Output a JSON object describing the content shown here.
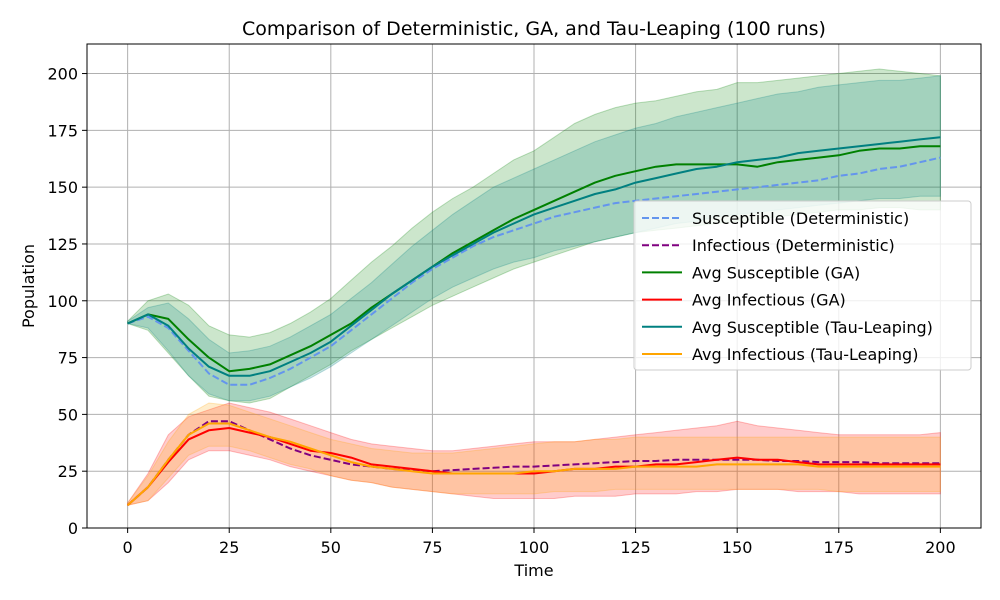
{
  "chart_data": {
    "type": "line",
    "title": "Comparison of Deterministic, GA, and Tau-Leaping (100 runs)",
    "xlabel": "Time",
    "ylabel": "Population",
    "xlim": [
      -10,
      210
    ],
    "ylim": [
      0,
      213
    ],
    "xticks": [
      0,
      25,
      50,
      75,
      100,
      125,
      150,
      175,
      200
    ],
    "yticks": [
      0,
      25,
      50,
      75,
      100,
      125,
      150,
      175,
      200
    ],
    "grid": true,
    "legend_position": "center-right",
    "x": [
      0,
      5,
      10,
      15,
      20,
      25,
      30,
      35,
      40,
      45,
      50,
      55,
      60,
      65,
      70,
      75,
      80,
      85,
      90,
      95,
      100,
      105,
      110,
      115,
      120,
      125,
      130,
      135,
      140,
      145,
      150,
      155,
      160,
      165,
      170,
      175,
      180,
      185,
      190,
      195,
      200
    ],
    "series": [
      {
        "name": "Susceptible (Deterministic)",
        "color": "#6495ED",
        "dash": "dashed",
        "values": [
          90,
          93,
          88,
          78,
          68,
          63,
          63,
          66,
          70,
          75,
          80,
          87,
          94,
          101,
          108,
          114,
          119,
          124,
          128,
          131,
          134,
          137,
          139,
          141,
          143,
          144,
          145,
          146,
          147,
          148,
          149,
          150,
          151,
          152,
          153,
          155,
          156,
          158,
          159,
          161,
          163
        ]
      },
      {
        "name": "Infectious (Deterministic)",
        "color": "#800080",
        "dash": "dashed",
        "values": [
          10,
          18,
          30,
          41,
          47,
          47,
          43,
          39,
          35,
          32,
          30,
          28,
          27,
          26,
          25.5,
          25,
          25.5,
          26,
          26.5,
          27,
          27,
          27.5,
          28,
          28.5,
          29,
          29.5,
          29.5,
          30,
          30,
          30,
          30,
          30,
          29.5,
          29.5,
          29,
          29,
          29,
          28.5,
          28.5,
          28.5,
          28.5
        ]
      },
      {
        "name": "Avg Susceptible (GA)",
        "color": "#008000",
        "dash": "solid",
        "values": [
          90,
          94,
          92,
          83,
          75,
          69,
          70,
          72,
          76,
          80,
          85,
          90,
          97,
          103,
          109,
          115,
          121,
          126,
          131,
          136,
          140,
          144,
          148,
          152,
          155,
          157,
          159,
          160,
          160,
          160,
          160,
          159,
          161,
          162,
          163,
          164,
          166,
          167,
          167,
          168,
          168
        ]
      },
      {
        "name": "Avg Infectious (GA)",
        "color": "#FF0000",
        "dash": "solid",
        "values": [
          10,
          18,
          29,
          39,
          43,
          44,
          42,
          40,
          37,
          34,
          33,
          31,
          28,
          27,
          26,
          25,
          24,
          24,
          24,
          24,
          24,
          25,
          26,
          26,
          27,
          27,
          28,
          28,
          29,
          30,
          31,
          30,
          30,
          29,
          28,
          28,
          28,
          28,
          28,
          28,
          28
        ]
      },
      {
        "name": "Avg Susceptible (Tau-Leaping)",
        "color": "#008080",
        "dash": "solid",
        "values": [
          90,
          94,
          89,
          79,
          71,
          67,
          67,
          69,
          73,
          77,
          82,
          89,
          96,
          103,
          109,
          115,
          120,
          125,
          130,
          134,
          138,
          141,
          144,
          147,
          149,
          152,
          154,
          156,
          158,
          159,
          161,
          162,
          163,
          165,
          166,
          167,
          168,
          169,
          170,
          171,
          172
        ]
      },
      {
        "name": "Avg Infectious (Tau-Leaping)",
        "color": "#FFA500",
        "dash": "solid",
        "values": [
          10,
          18,
          30,
          41,
          46,
          46,
          43,
          40,
          38,
          35,
          32,
          29,
          27,
          26,
          25,
          24,
          24,
          24,
          24,
          24,
          25,
          25,
          26,
          26,
          26,
          27,
          27,
          27,
          27,
          28,
          28,
          28,
          28,
          28,
          27,
          27,
          27,
          27,
          27,
          27,
          27
        ]
      }
    ],
    "bands": [
      {
        "color": "#008000",
        "opacity": 0.2,
        "upper": [
          91,
          100,
          103,
          98,
          89,
          85,
          84,
          86,
          90,
          95,
          101,
          109,
          117,
          124,
          132,
          139,
          145,
          150,
          156,
          162,
          166,
          172,
          178,
          182,
          185,
          187,
          188,
          190,
          192,
          193,
          196,
          196,
          197,
          198,
          199,
          200,
          201,
          202,
          201,
          200,
          199
        ],
        "lower": [
          90,
          87,
          77,
          67,
          58,
          56,
          55,
          57,
          62,
          67,
          72,
          78,
          83,
          88,
          93,
          98,
          102,
          106,
          110,
          114,
          117,
          120,
          123,
          126,
          128,
          130,
          131,
          132,
          133,
          134,
          135,
          136,
          137,
          138,
          139,
          140,
          140,
          141,
          141,
          140,
          140
        ]
      },
      {
        "color": "#008080",
        "opacity": 0.2,
        "upper": [
          91,
          97,
          99,
          92,
          83,
          77,
          78,
          80,
          84,
          89,
          94,
          101,
          108,
          116,
          124,
          131,
          138,
          144,
          150,
          154,
          158,
          162,
          166,
          170,
          173,
          176,
          178,
          181,
          183,
          185,
          187,
          189,
          191,
          192,
          194,
          195,
          196,
          197,
          197,
          198,
          199
        ],
        "lower": [
          90,
          88,
          78,
          67,
          59,
          56,
          56,
          58,
          62,
          66,
          71,
          77,
          83,
          89,
          95,
          101,
          106,
          110,
          114,
          117,
          119,
          122,
          124,
          126,
          128,
          130,
          132,
          134,
          135,
          137,
          138,
          139,
          140,
          141,
          142,
          143,
          144,
          145,
          145,
          146,
          146
        ]
      },
      {
        "color": "#FF0000",
        "opacity": 0.2,
        "upper": [
          11,
          24,
          41,
          49,
          52,
          55,
          53,
          51,
          48,
          45,
          42,
          39,
          37,
          36,
          35,
          34,
          34,
          35,
          36,
          37,
          38,
          38,
          38,
          39,
          40,
          41,
          42,
          43,
          44,
          45,
          47,
          45,
          44,
          43,
          42,
          41,
          41,
          41,
          41,
          41,
          42
        ],
        "lower": [
          10,
          12,
          20,
          30,
          34,
          34,
          32,
          30,
          27,
          25,
          23,
          21,
          20,
          18,
          17,
          16,
          15,
          14,
          13,
          13,
          13,
          13,
          14,
          14,
          14,
          15,
          15,
          15,
          16,
          16,
          17,
          17,
          17,
          16,
          16,
          16,
          15,
          15,
          15,
          15,
          15
        ]
      },
      {
        "color": "#FFA500",
        "opacity": 0.2,
        "upper": [
          11,
          23,
          38,
          50,
          55,
          54,
          51,
          48,
          45,
          42,
          39,
          37,
          35,
          34,
          33,
          33,
          33,
          34,
          35,
          36,
          37,
          38,
          38,
          39,
          39,
          40,
          40,
          40,
          40,
          40,
          40,
          40,
          40,
          40,
          40,
          40,
          40,
          40,
          40,
          40,
          40
        ],
        "lower": [
          10,
          12,
          22,
          32,
          36,
          36,
          34,
          31,
          28,
          26,
          23,
          21,
          20,
          18,
          17,
          16,
          15,
          15,
          15,
          15,
          15,
          16,
          16,
          16,
          17,
          17,
          17,
          17,
          17,
          17,
          17,
          17,
          17,
          17,
          17,
          16,
          16,
          16,
          16,
          16,
          16
        ]
      }
    ]
  }
}
